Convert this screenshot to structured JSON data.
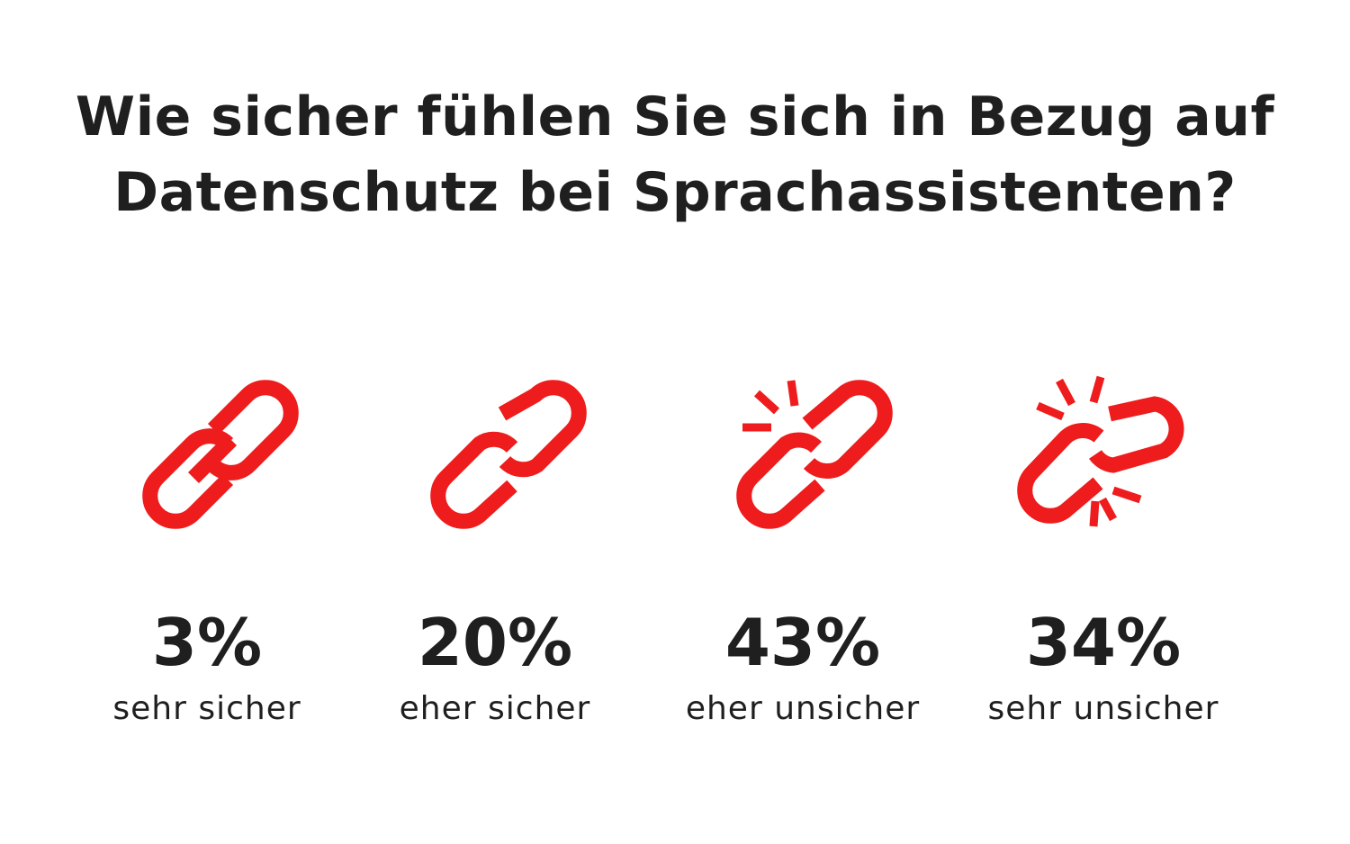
{
  "chart_data": {
    "type": "pictogram",
    "title_lines": [
      "Wie sicher fühlen Sie sich in Bezug auf",
      "Datenschutz bei Sprachassistenten?"
    ],
    "unit": "%",
    "accent_color": "#ee1c1c",
    "items": [
      {
        "value": 3,
        "value_label": "3%",
        "label": "sehr sicher",
        "icon": "chain-link-intact-icon"
      },
      {
        "value": 20,
        "value_label": "20%",
        "label": "eher sicher",
        "icon": "chain-link-separated-icon"
      },
      {
        "value": 43,
        "value_label": "43%",
        "label": "eher unsicher",
        "icon": "chain-link-cracking-icon"
      },
      {
        "value": 34,
        "value_label": "34%",
        "label": "sehr unsicher",
        "icon": "chain-link-broken-icon"
      }
    ]
  }
}
